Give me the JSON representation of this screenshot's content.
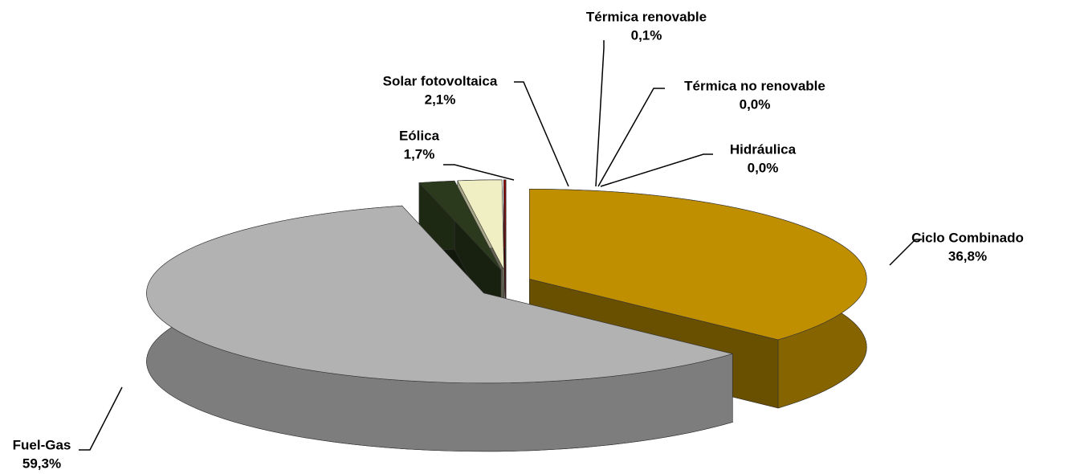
{
  "chart_data": {
    "type": "pie",
    "categories": [
      "Ciclo Combinado",
      "Fuel-Gas",
      "Eólica",
      "Solar fotovoltaica",
      "Térmica renovable",
      "Térmica no renovable",
      "Hidráulica"
    ],
    "values": [
      36.8,
      59.3,
      1.7,
      2.1,
      0.1,
      0.0,
      0.0
    ],
    "value_labels": [
      "36,8%",
      "59,3%",
      "1,7%",
      "2,1%",
      "0,1%",
      "0,0%",
      "0,0%"
    ],
    "colors": [
      "#bf8f00",
      "#b2b2b2",
      "#2b3a1c",
      "#f0efc4",
      "#990000",
      "#4f81bd",
      "#9bbb59"
    ]
  }
}
